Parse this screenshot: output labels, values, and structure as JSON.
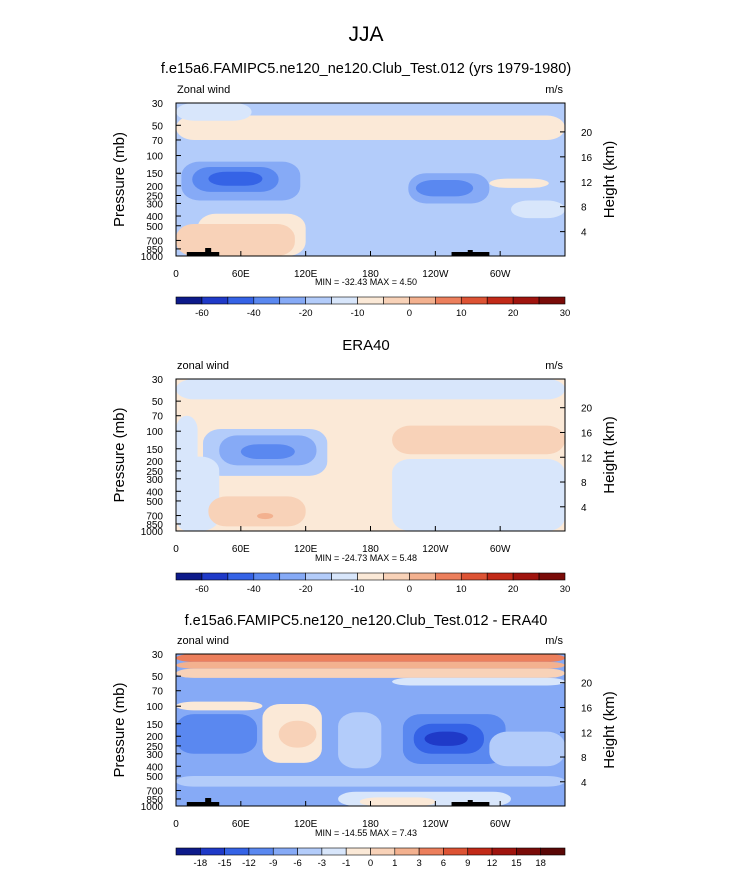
{
  "page": {
    "title": "JJA"
  },
  "palettes": {
    "blues": [
      "#0d1a8a",
      "#1f3ac8",
      "#3563e6",
      "#5a88f0",
      "#86aaf6",
      "#b3ccfa",
      "#d8e6fb"
    ],
    "neutral": "#fbe9d7",
    "reds": [
      "#f8d2b8",
      "#f3b18f",
      "#ec7f5c",
      "#dd5334",
      "#c22a18",
      "#a0140e",
      "#7a0b08"
    ]
  },
  "chart_data": [
    {
      "type": "heatmap",
      "title": "f.e15a6.FAMIPC5.ne120_ne120.Club_Test.012 (yrs 1979-1980)",
      "subtitle_left": "Zonal wind",
      "units": "m/s",
      "ylabel": "Pressure (mb)",
      "ylabel_right": "Height (km)",
      "pressure_ticks": [
        "30",
        "50",
        "70",
        "100",
        "150",
        "200",
        "250",
        "300",
        "400",
        "500",
        "700",
        "850",
        "1000"
      ],
      "height_ticks": [
        "20",
        "16",
        "12",
        "8",
        "4"
      ],
      "lon_ticks": [
        "0",
        "60E",
        "120E",
        "180",
        "120W",
        "60W"
      ],
      "stats": "MIN = -32.43   MAX =   4.50",
      "colorbar_labels": [
        "-60",
        "-40",
        "-20",
        "-10",
        "0",
        "10",
        "20",
        "30"
      ],
      "background_level": 5,
      "regions": [
        {
          "lon": [
            0,
            360
          ],
          "p": [
            40,
            70
          ],
          "level": 7
        },
        {
          "lon": [
            190,
            330
          ],
          "p": [
            45,
            65
          ],
          "level": 7
        },
        {
          "lon": [
            0,
            70
          ],
          "p": [
            30,
            45
          ],
          "level": 6
        },
        {
          "lon": [
            5,
            115
          ],
          "p": [
            115,
            280
          ],
          "level": 4
        },
        {
          "lon": [
            15,
            95
          ],
          "p": [
            130,
            230
          ],
          "level": 3
        },
        {
          "lon": [
            30,
            80
          ],
          "p": [
            145,
            200
          ],
          "level": 2
        },
        {
          "lon": [
            215,
            290
          ],
          "p": [
            150,
            300
          ],
          "level": 4
        },
        {
          "lon": [
            222,
            275
          ],
          "p": [
            175,
            255
          ],
          "level": 3
        },
        {
          "lon": [
            20,
            120
          ],
          "p": [
            380,
            1000
          ],
          "level": 7
        },
        {
          "lon": [
            0,
            110
          ],
          "p": [
            480,
            1000
          ],
          "level": 8
        },
        {
          "lon": [
            290,
            345
          ],
          "p": [
            170,
            210
          ],
          "level": 7
        },
        {
          "lon": [
            310,
            360
          ],
          "p": [
            280,
            420
          ],
          "level": 6
        }
      ]
    },
    {
      "type": "heatmap",
      "title": "ERA40",
      "subtitle_left": "zonal wind",
      "units": "m/s",
      "ylabel": "Pressure (mb)",
      "ylabel_right": "Height (km)",
      "pressure_ticks": [
        "30",
        "50",
        "70",
        "100",
        "150",
        "200",
        "250",
        "300",
        "400",
        "500",
        "700",
        "850",
        "1000"
      ],
      "height_ticks": [
        "20",
        "16",
        "12",
        "8",
        "4"
      ],
      "lon_ticks": [
        "0",
        "60E",
        "120E",
        "180",
        "120W",
        "60W"
      ],
      "stats": "MIN = -24.73   MAX =   5.48",
      "colorbar_labels": [
        "-60",
        "-40",
        "-20",
        "-10",
        "0",
        "10",
        "20",
        "30"
      ],
      "background_level": 7,
      "regions": [
        {
          "lon": [
            0,
            360
          ],
          "p": [
            30,
            48
          ],
          "level": 6
        },
        {
          "lon": [
            25,
            140
          ],
          "p": [
            95,
            280
          ],
          "level": 5
        },
        {
          "lon": [
            40,
            130
          ],
          "p": [
            110,
            220
          ],
          "level": 4
        },
        {
          "lon": [
            60,
            110
          ],
          "p": [
            135,
            190
          ],
          "level": 3
        },
        {
          "lon": [
            0,
            40
          ],
          "p": [
            180,
            1000
          ],
          "level": 6
        },
        {
          "lon": [
            0,
            20
          ],
          "p": [
            70,
            1000
          ],
          "level": 6
        },
        {
          "lon": [
            200,
            360
          ],
          "p": [
            88,
            170
          ],
          "level": 8
        },
        {
          "lon": [
            320,
            360
          ],
          "p": [
            300,
            1000
          ],
          "level": 6
        },
        {
          "lon": [
            200,
            360
          ],
          "p": [
            190,
            1000
          ],
          "level": 6
        },
        {
          "lon": [
            30,
            120
          ],
          "p": [
            450,
            900
          ],
          "level": 8
        },
        {
          "lon": [
            75,
            90
          ],
          "p": [
            660,
            760
          ],
          "level": 9
        }
      ]
    },
    {
      "type": "heatmap",
      "title": "f.e15a6.FAMIPC5.ne120_ne120.Club_Test.012 - ERA40",
      "subtitle_left": "zonal wind",
      "units": "m/s",
      "ylabel": "Pressure (mb)",
      "ylabel_right": "Height (km)",
      "pressure_ticks": [
        "30",
        "50",
        "70",
        "100",
        "150",
        "200",
        "250",
        "300",
        "400",
        "500",
        "700",
        "850",
        "1000"
      ],
      "height_ticks": [
        "20",
        "16",
        "12",
        "8",
        "4"
      ],
      "lon_ticks": [
        "0",
        "60E",
        "120E",
        "180",
        "120W",
        "60W"
      ],
      "stats": "MIN = -14.55   MAX =   7.43",
      "colorbar_labels": [
        "-18",
        "-15",
        "-12",
        "-9",
        "-6",
        "-3",
        "-1",
        "0",
        "1",
        "3",
        "6",
        "9",
        "12",
        "15",
        "18"
      ],
      "background_level": 4,
      "regions": [
        {
          "lon": [
            0,
            360
          ],
          "p": [
            30,
            36
          ],
          "level": 10
        },
        {
          "lon": [
            0,
            360
          ],
          "p": [
            36,
            42
          ],
          "level": 9
        },
        {
          "lon": [
            0,
            360
          ],
          "p": [
            42,
            52
          ],
          "level": 8
        },
        {
          "lon": [
            200,
            360
          ],
          "p": [
            52,
            62
          ],
          "level": 6
        },
        {
          "lon": [
            0,
            80
          ],
          "p": [
            90,
            110
          ],
          "level": 7
        },
        {
          "lon": [
            0,
            70
          ],
          "p": [
            135,
            175
          ],
          "level": 2
        },
        {
          "lon": [
            0,
            75
          ],
          "p": [
            120,
            300
          ],
          "level": 3
        },
        {
          "lon": [
            80,
            135
          ],
          "p": [
            95,
            370
          ],
          "level": 7
        },
        {
          "lon": [
            95,
            130
          ],
          "p": [
            140,
            260
          ],
          "level": 8
        },
        {
          "lon": [
            150,
            190
          ],
          "p": [
            115,
            420
          ],
          "level": 5
        },
        {
          "lon": [
            210,
            305
          ],
          "p": [
            120,
            380
          ],
          "level": 3
        },
        {
          "lon": [
            220,
            285
          ],
          "p": [
            150,
            300
          ],
          "level": 2
        },
        {
          "lon": [
            230,
            270
          ],
          "p": [
            180,
            250
          ],
          "level": 1
        },
        {
          "lon": [
            290,
            360
          ],
          "p": [
            180,
            400
          ],
          "level": 5
        },
        {
          "lon": [
            0,
            360
          ],
          "p": [
            500,
            640
          ],
          "level": 5
        },
        {
          "lon": [
            150,
            310
          ],
          "p": [
            720,
            1000
          ],
          "level": 6
        },
        {
          "lon": [
            170,
            240
          ],
          "p": [
            820,
            1000
          ],
          "level": 7
        }
      ]
    }
  ]
}
